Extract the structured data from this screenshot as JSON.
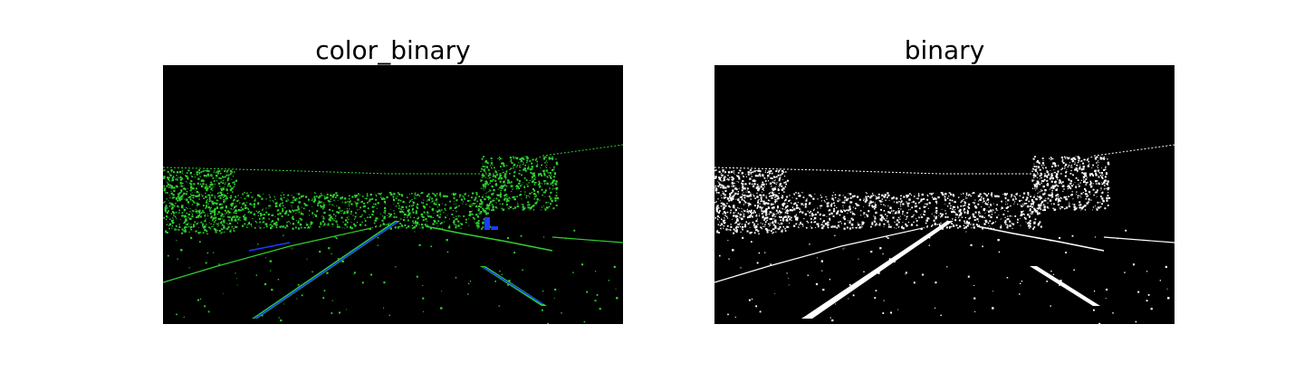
{
  "figure": {
    "panels": [
      {
        "title": "color_binary",
        "image": "color binary thresholded road image (green gradient edges, blue saturation lane lines)"
      },
      {
        "title": "binary",
        "image": "combined binary thresholded road image (white on black)"
      }
    ]
  },
  "colors": {
    "background": "#000000",
    "gradient_channel": "#2fd02f",
    "saturation_channel": "#1a3cff",
    "binary_white": "#ffffff"
  }
}
